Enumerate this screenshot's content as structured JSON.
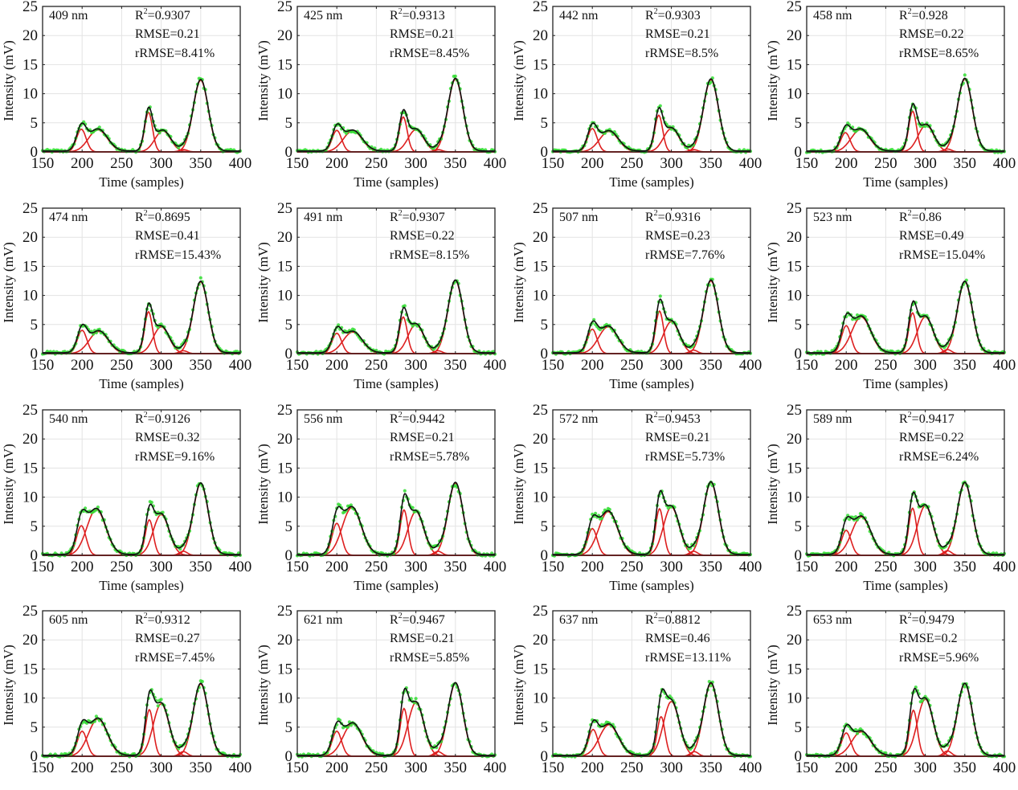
{
  "chart_data": {
    "type": "line",
    "layout": "4x4 grid of subplots",
    "xlabel": "Time (samples)",
    "ylabel": "Intensity (mV)",
    "xlim": [
      150,
      400
    ],
    "ylim": [
      0,
      25
    ],
    "xticks": [
      150,
      200,
      250,
      300,
      350,
      400
    ],
    "yticks": [
      0,
      5,
      10,
      15,
      20,
      25
    ],
    "grid": true,
    "series_styles": {
      "measured": {
        "color": "#33dd33",
        "style": "dots"
      },
      "fit_sum": {
        "color": "#111111",
        "style": "line"
      },
      "components": {
        "color": "#dd1f1f",
        "style": "line"
      }
    },
    "panels": [
      {
        "label": "409 nm",
        "r2": "0.9307",
        "rmse": "0.21",
        "rrmse": "8.41%",
        "peaks": [
          [
            3.9,
            199,
            6
          ],
          [
            3.8,
            220,
            12
          ],
          [
            6.8,
            284,
            5
          ],
          [
            3.6,
            302,
            10
          ],
          [
            0.4,
            328,
            5
          ],
          [
            12.3,
            350,
            9.5
          ]
        ]
      },
      {
        "label": "425 nm",
        "r2": "0.9313",
        "rmse": "0.21",
        "rrmse": "8.45%",
        "peaks": [
          [
            3.7,
            200,
            6
          ],
          [
            3.6,
            220,
            12
          ],
          [
            6.0,
            284,
            5
          ],
          [
            3.8,
            300,
            10
          ],
          [
            0.4,
            328,
            5
          ],
          [
            12.5,
            350,
            9.5
          ]
        ]
      },
      {
        "label": "442 nm",
        "r2": "0.9303",
        "rmse": "0.21",
        "rrmse": "8.5%",
        "peaks": [
          [
            4.0,
            200,
            6
          ],
          [
            3.5,
            221,
            12
          ],
          [
            6.3,
            284,
            5
          ],
          [
            4.0,
            300,
            10
          ],
          [
            0.4,
            328,
            5
          ],
          [
            12.4,
            350,
            9.5
          ]
        ]
      },
      {
        "label": "458 nm",
        "r2": "0.928",
        "rmse": "0.22",
        "rrmse": "8.65%",
        "peaks": [
          [
            3.3,
            199,
            6
          ],
          [
            3.8,
            218,
            12
          ],
          [
            7.0,
            284,
            5
          ],
          [
            4.6,
            301,
            10
          ],
          [
            0.5,
            328,
            5
          ],
          [
            12.5,
            350,
            9.5
          ]
        ]
      },
      {
        "label": "474 nm",
        "r2": "0.8695",
        "rmse": "0.41",
        "rrmse": "15.43%",
        "peaks": [
          [
            4.0,
            200,
            6
          ],
          [
            3.8,
            221,
            12
          ],
          [
            7.2,
            284,
            5
          ],
          [
            4.6,
            300,
            10
          ],
          [
            0.5,
            328,
            5
          ],
          [
            12.3,
            350,
            9.5
          ]
        ]
      },
      {
        "label": "491 nm",
        "r2": "0.9307",
        "rmse": "0.22",
        "rrmse": "8.15%",
        "peaks": [
          [
            3.5,
            200,
            6
          ],
          [
            3.7,
            220,
            12
          ],
          [
            6.3,
            284,
            5
          ],
          [
            5.0,
            300,
            10
          ],
          [
            0.5,
            328,
            5
          ],
          [
            12.5,
            350,
            9.5
          ]
        ]
      },
      {
        "label": "507 nm",
        "r2": "0.9316",
        "rmse": "0.23",
        "rrmse": "7.76%",
        "peaks": [
          [
            4.2,
            200,
            6
          ],
          [
            4.6,
            220,
            12
          ],
          [
            7.3,
            285,
            5
          ],
          [
            5.5,
            300,
            10
          ],
          [
            0.6,
            328,
            5
          ],
          [
            12.5,
            350,
            9.5
          ]
        ]
      },
      {
        "label": "523 nm",
        "r2": "0.86",
        "rmse": "0.49",
        "rrmse": "15.04%",
        "peaks": [
          [
            4.8,
            200,
            6
          ],
          [
            6.3,
            219,
            12
          ],
          [
            7.0,
            284,
            5
          ],
          [
            6.3,
            300,
            10
          ],
          [
            0.7,
            328,
            5
          ],
          [
            12.3,
            350,
            9.5
          ]
        ]
      },
      {
        "label": "540 nm",
        "r2": "0.9126",
        "rmse": "0.32",
        "rrmse": "9.16%",
        "peaks": [
          [
            5.1,
            199,
            6
          ],
          [
            7.9,
            218,
            12
          ],
          [
            6.1,
            285,
            5
          ],
          [
            7.0,
            300,
            10
          ],
          [
            0.7,
            328,
            5
          ],
          [
            12.3,
            350,
            9.5
          ]
        ]
      },
      {
        "label": "556 nm",
        "r2": "0.9442",
        "rmse": "0.21",
        "rrmse": "5.78%",
        "peaks": [
          [
            5.5,
            200,
            6
          ],
          [
            8.2,
            219,
            12
          ],
          [
            7.8,
            285,
            5
          ],
          [
            7.5,
            300,
            10
          ],
          [
            0.7,
            328,
            5
          ],
          [
            12.4,
            350,
            9.5
          ]
        ]
      },
      {
        "label": "572 nm",
        "r2": "0.9453",
        "rmse": "0.21",
        "rrmse": "5.73%",
        "peaks": [
          [
            4.6,
            200,
            6
          ],
          [
            7.5,
            220,
            12
          ],
          [
            8.0,
            285,
            5
          ],
          [
            8.3,
            300,
            10
          ],
          [
            0.7,
            328,
            5
          ],
          [
            12.5,
            350,
            9.5
          ]
        ]
      },
      {
        "label": "589 nm",
        "r2": "0.9417",
        "rmse": "0.22",
        "rrmse": "6.24%",
        "peaks": [
          [
            4.3,
            200,
            6
          ],
          [
            6.6,
            219,
            12
          ],
          [
            8.1,
            284,
            5
          ],
          [
            8.5,
            300,
            10
          ],
          [
            0.8,
            328,
            5
          ],
          [
            12.4,
            350,
            9.5
          ]
        ]
      },
      {
        "label": "605 nm",
        "r2": "0.9312",
        "rmse": "0.27",
        "rrmse": "7.45%",
        "peaks": [
          [
            4.3,
            200,
            6
          ],
          [
            6.4,
            220,
            12
          ],
          [
            8.0,
            285,
            5
          ],
          [
            9.0,
            300,
            10
          ],
          [
            0.8,
            328,
            5
          ],
          [
            12.4,
            350,
            9.5
          ]
        ]
      },
      {
        "label": "621 nm",
        "r2": "0.9467",
        "rmse": "0.21",
        "rrmse": "5.85%",
        "peaks": [
          [
            4.3,
            200,
            6
          ],
          [
            5.6,
            220,
            12
          ],
          [
            8.2,
            285,
            5
          ],
          [
            9.2,
            300,
            10
          ],
          [
            0.8,
            328,
            5
          ],
          [
            12.5,
            350,
            9.5
          ]
        ]
      },
      {
        "label": "637 nm",
        "r2": "0.8812",
        "rmse": "0.46",
        "rrmse": "13.11%",
        "peaks": [
          [
            4.6,
            201,
            6
          ],
          [
            5.4,
            221,
            12
          ],
          [
            6.8,
            287,
            5
          ],
          [
            9.4,
            300,
            10
          ],
          [
            0.8,
            329,
            5
          ],
          [
            12.5,
            350,
            9.5
          ]
        ]
      },
      {
        "label": "653 nm",
        "r2": "0.9479",
        "rmse": "0.2",
        "rrmse": "5.96%",
        "peaks": [
          [
            4.0,
            200,
            6
          ],
          [
            4.2,
            219,
            12
          ],
          [
            7.9,
            285,
            5
          ],
          [
            9.8,
            300,
            10
          ],
          [
            0.9,
            328,
            5
          ],
          [
            12.4,
            350,
            9.5
          ]
        ]
      }
    ]
  },
  "labels": {
    "r2_prefix": "R",
    "r2_sup": "2",
    "eq": "=",
    "rmse_prefix": "RMSE=",
    "rrmse_prefix": "rRMSE="
  }
}
